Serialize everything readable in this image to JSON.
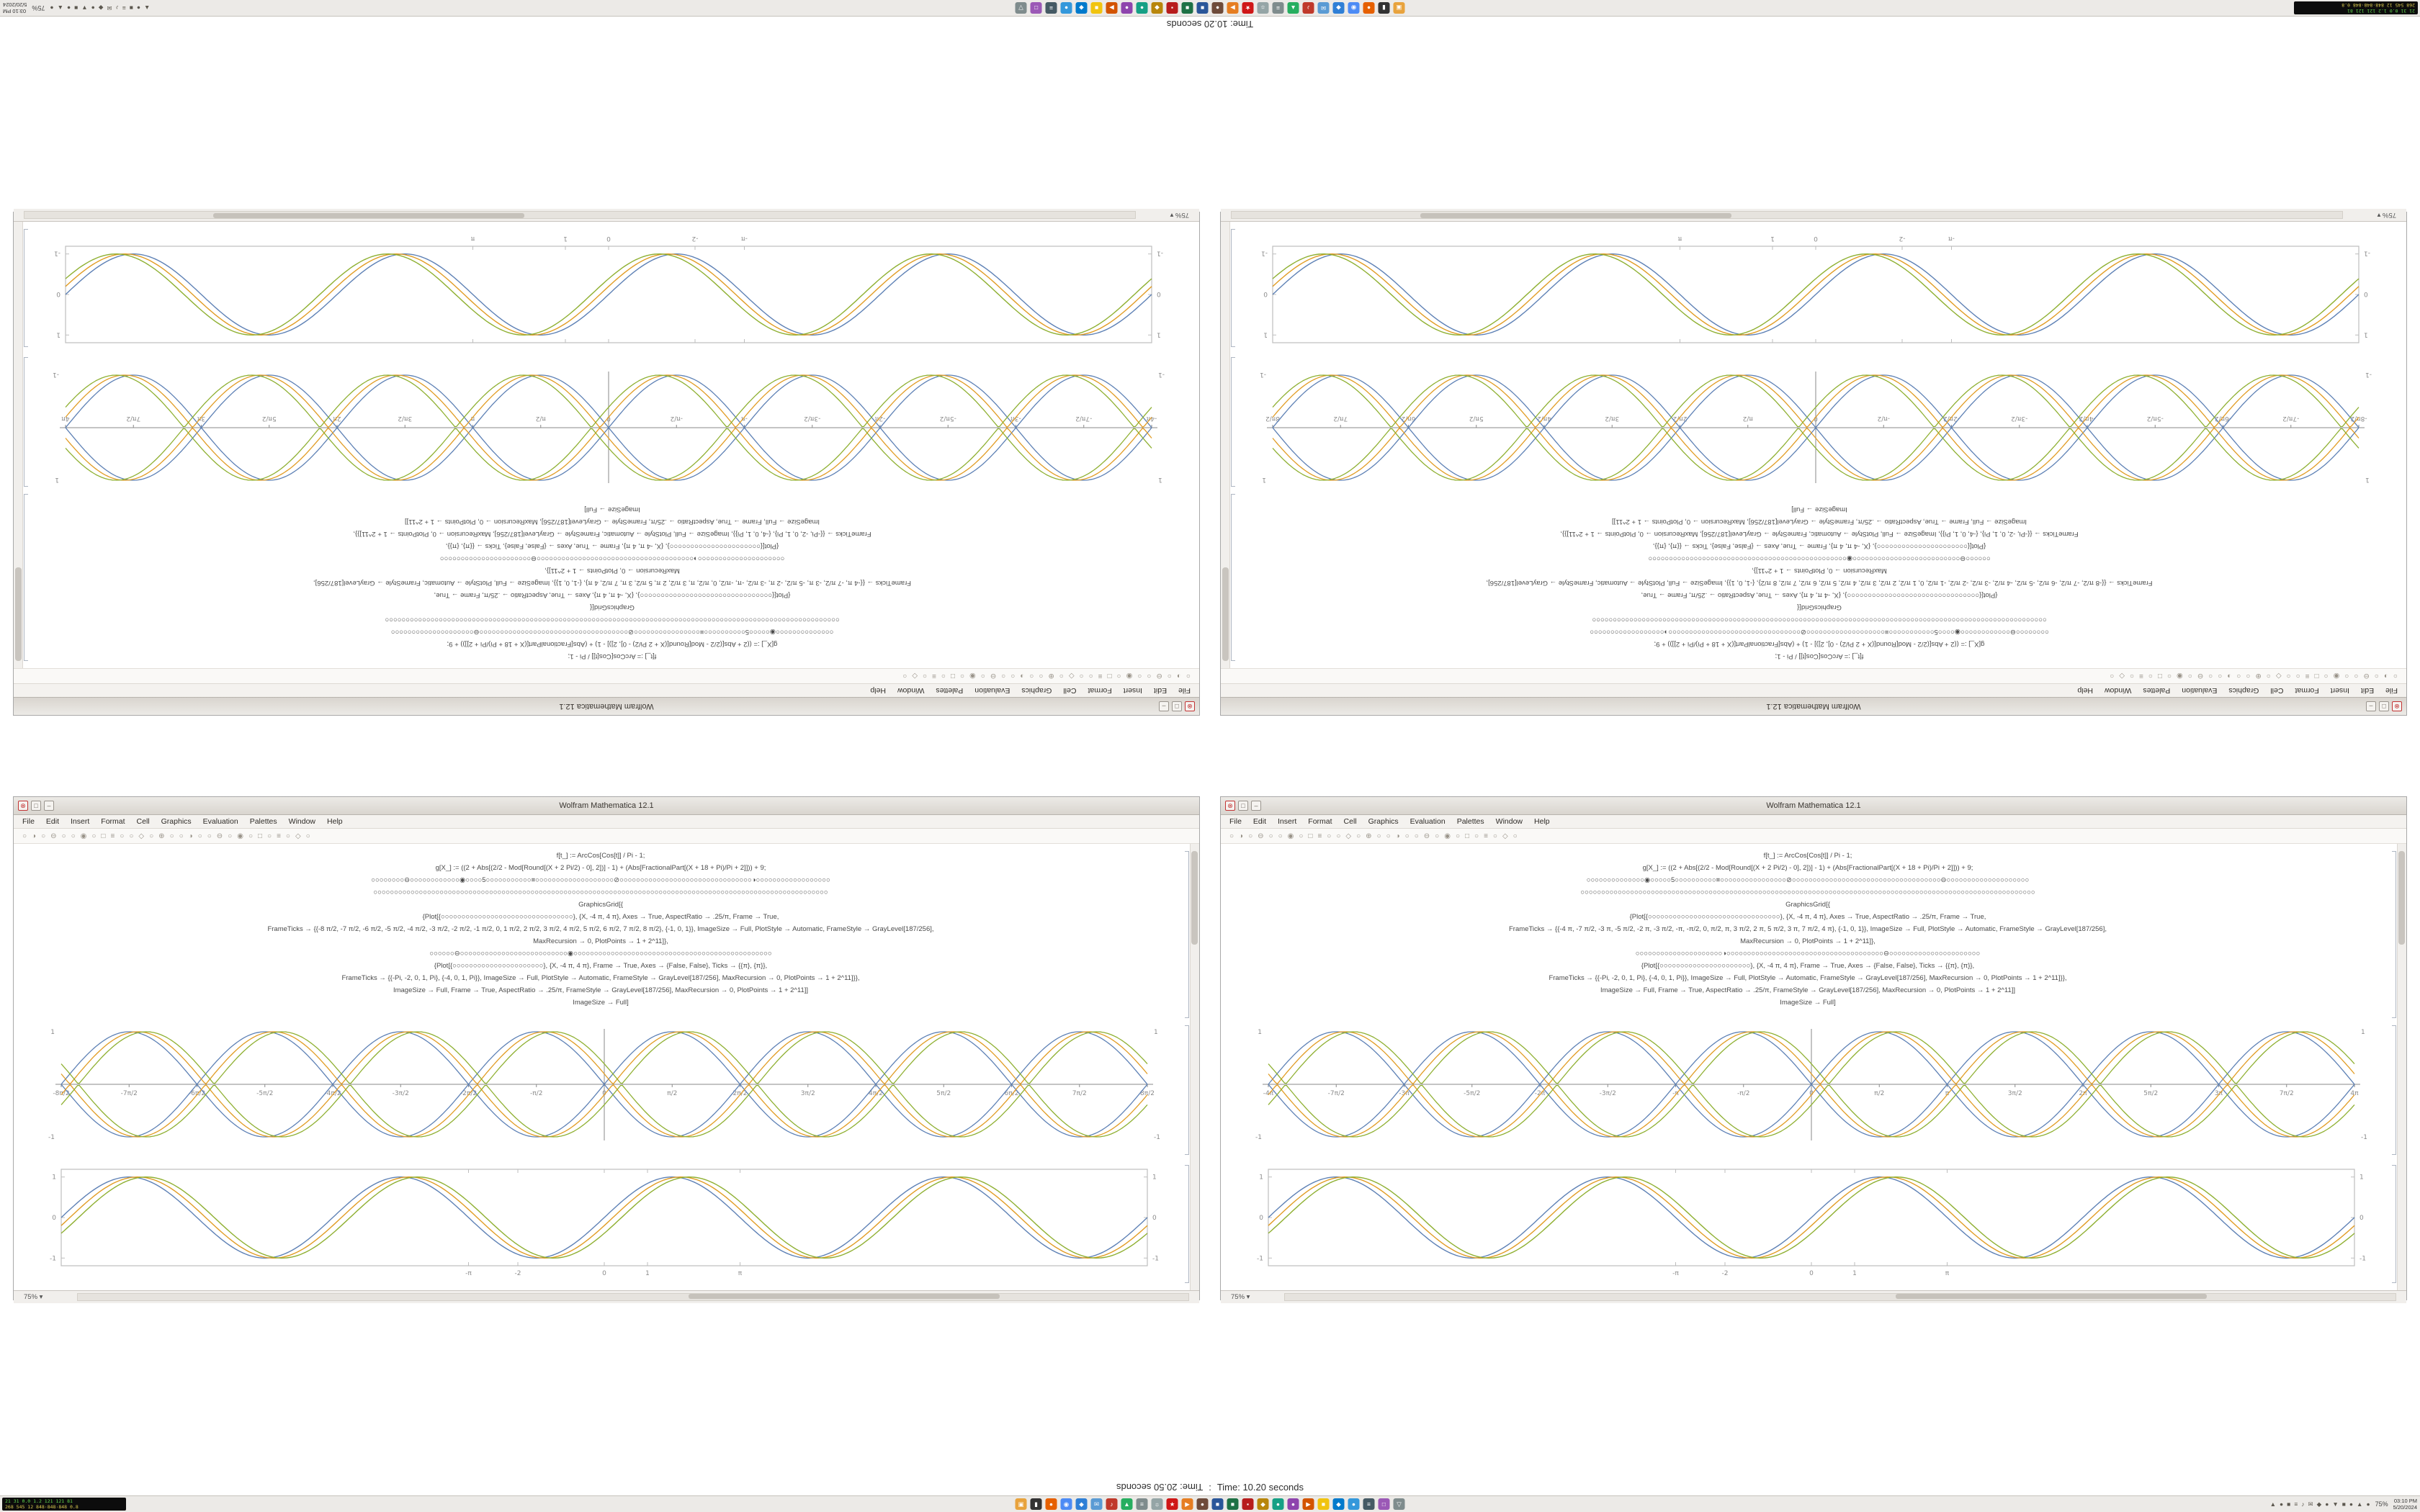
{
  "timer": {
    "main": "Time: 10.20 seconds",
    "alt": "Time: 20.50 seconds",
    "sep": ":"
  },
  "colors": {
    "curves": [
      "#5e81b5",
      "#e19c24",
      "#8fb032"
    ],
    "frame": "#bdbdbd",
    "axis": "#8a8a8a",
    "accent_red": "#c23434"
  },
  "chrome": {
    "title": "Wolfram Mathematica 12.1",
    "menu": [
      "File",
      "Edit",
      "Insert",
      "Format",
      "Cell",
      "Graphics",
      "Evaluation",
      "Palettes",
      "Window",
      "Help"
    ],
    "toolbar_icons": [
      "○",
      "◑",
      "○",
      "⊖",
      "○",
      "○",
      "◉",
      "○",
      "□",
      "≡",
      "○",
      "○",
      "◇",
      "○",
      "⊕",
      "○",
      "○",
      "◑",
      "○",
      "○",
      "⊖",
      "○",
      "◉",
      "○",
      "□",
      "○",
      "≡",
      "○",
      "◇",
      "○"
    ],
    "zoom": "75%",
    "zoom_caret": "▾",
    "buttons": {
      "close": "⊗",
      "max": "□",
      "min": "–"
    }
  },
  "windows": [
    {
      "id": "left",
      "code_lines": [
        "f[t_] := ArcCos[Cos[t]] / Pi - 1;",
        "g[X_] := ((2 + Abs[(2/2 - Mod[Round[(X + 2 Pi/2) - 0], 2])] - 1) + (Abs[FractionalPart[(X + 18 + Pi)/Pi + 2]])) + 9;",
        "○○○○○○○○⊖○○○○○○○○○○○○◉○○○○5○○○○○○○○○○○≡○○○○○○○○○○○○○○○○○○○⊘○○○○○○○○○○○○○○○○○○○○○○○○○○○○○○○○◑○○○○○○○○○○○○○○○○○○",
        "○○○○○○○○○○○○○○○○○○○○○○○○○○○○○○○○○○○○○○○○○○○○○○○○○○○○○○○○○○○○○○○○○○○○○○○○○○○○○○○○○○○○○○○○○○○○○○○○○○○○○○○○○○○○○○",
        "GraphicsGrid[{",
        "{Plot[{○○○○○○○○○○○○○○○○○○○○○○○○○○○○○○○○}, {X, -4 π, 4 π}, Axes → True, AspectRatio → .25/π, Frame → True,",
        "FrameTicks → {{-8 π/2, -7 π/2, -6 π/2, -5 π/2, -4 π/2, -3 π/2, -2 π/2, -1 π/2, 0, 1 π/2, 2 π/2, 3 π/2, 4 π/2, 5 π/2, 6 π/2, 7 π/2, 8 π/2}, {-1, 0, 1}}, ImageSize → Full, PlotStyle → Automatic, FrameStyle → GrayLevel[187/256],",
        "MaxRecursion → 0, PlotPoints → 1 + 2^11]},",
        "○○○○○○⊖○○○○○○○○○○○○○○○○○○○○○○○○○○◉○○○○○○○○○○○○○○○○○○○○○○○○○○○○○○○○○○○○○○○○○○○○○○○○",
        "{Plot[{○○○○○○○○○○○○○○○○○○○○○○}, {X, -4 π, 4 π}, Frame → True, Axes → {False, False}, Ticks → {{π}, {π}},",
        "FrameTicks → {{-Pi, -2, 0, 1, Pi}, {-4, 0, 1, Pi}}, ImageSize → Full, PlotStyle → Automatic, FrameStyle → GrayLevel[187/256], MaxRecursion → 0, PlotPoints → 1 + 2^11]}},",
        "ImageSize → Full, Frame → True, AspectRatio → .25/π, FrameStyle → GrayLevel[187/256], MaxRecursion → 0, PlotPoints → 1 + 2^11]]",
        "ImageSize → Full]"
      ],
      "abs_plot": {
        "type": "abs",
        "x_range_pi": [
          -4,
          4
        ],
        "phases": [
          0,
          0.2,
          0.4
        ],
        "x_ticks": [
          {
            "v": -4,
            "label": "-8π/2"
          },
          {
            "v": -3.5,
            "label": "-7π/2"
          },
          {
            "v": -3,
            "label": "-6π/2"
          },
          {
            "v": -2.5,
            "label": "-5π/2"
          },
          {
            "v": -2,
            "label": "-4π/2"
          },
          {
            "v": -1.5,
            "label": "-3π/2"
          },
          {
            "v": -1,
            "label": "-2π/2"
          },
          {
            "v": -0.5,
            "label": "-π/2"
          },
          {
            "v": 0,
            "label": "0"
          },
          {
            "v": 0.5,
            "label": "π/2"
          },
          {
            "v": 1,
            "label": "2π/2"
          },
          {
            "v": 1.5,
            "label": "3π/2"
          },
          {
            "v": 2,
            "label": "4π/2"
          },
          {
            "v": 2.5,
            "label": "5π/2"
          },
          {
            "v": 3,
            "label": "6π/2"
          },
          {
            "v": 3.5,
            "label": "7π/2"
          },
          {
            "v": 4,
            "label": "8π/2"
          }
        ],
        "y_ticks": [
          {
            "v": -1,
            "label": "-1"
          },
          {
            "v": 0,
            "label": "0"
          },
          {
            "v": 1,
            "label": "1"
          }
        ]
      },
      "framed_plot": {
        "type": "framed",
        "x_range_pi": [
          -4,
          4
        ],
        "phases": [
          0,
          0.2,
          0.4
        ],
        "x_ticks": [
          {
            "v": -1,
            "label": "-π"
          },
          {
            "v": -0.6366,
            "label": "-2"
          },
          {
            "v": 0,
            "label": "0"
          },
          {
            "v": 0.3183,
            "label": "1"
          },
          {
            "v": 1,
            "label": "π"
          }
        ],
        "y_ticks": [
          {
            "v": -1,
            "label": "-1"
          },
          {
            "v": 0,
            "label": "0"
          },
          {
            "v": 1,
            "label": "1"
          }
        ]
      }
    },
    {
      "id": "right",
      "code_lines": [
        "f[t_] := ArcCos[Cos[t]] / Pi - 1;",
        "g[X_] := ((2 + Abs[(2/2 - Mod[Round[(X + 2 Pi/2) - 0], 2])] - 1) + (Abs[FractionalPart[(X + 18 + Pi)/Pi + 2]])) + 9;",
        "○○○○○○○○○○○○○○◉○○○○○5○○○○○○○○○○≡○○○○○○○○○○○○○○○○⊘○○○○○○○○○○○○○○○○○○○○○○○○○○○○○○○○○○○○⊖○○○○○○○○○○○○○○○○○○○○",
        "○○○○○○○○○○○○○○○○○○○○○○○○○○○○○○○○○○○○○○○○○○○○○○○○○○○○○○○○○○○○○○○○○○○○○○○○○○○○○○○○○○○○○○○○○○○○○○○○○○○○○○○○○○○○○○",
        "GraphicsGrid[{",
        "{Plot[{○○○○○○○○○○○○○○○○○○○○○○○○○○○○○○○○}, {X, -4 π, 4 π}, Axes → True, AspectRatio → .25/π, Frame → True,",
        "FrameTicks → {{-4 π, -7 π/2, -3 π, -5 π/2, -2 π, -3 π/2, -π, -π/2, 0, π/2, π, 3 π/2, 2 π, 5 π/2, 3 π, 7 π/2, 4 π}, {-1, 0, 1}}, ImageSize → Full, PlotStyle → Automatic, FrameStyle → GrayLevel[187/256],",
        "MaxRecursion → 0, PlotPoints → 1 + 2^11]},",
        "○○○○○○○○○○○○○○○○○○○○○◑○○○○○○○○○○○○○○○○○○○○○○○○○○○○○○○○○○○○○○⊖○○○○○○○○○○○○○○○○○○○○○○",
        "{Plot[{○○○○○○○○○○○○○○○○○○○○○○}, {X, -4 π, 4 π}, Frame → True, Axes → {False, False}, Ticks → {{π}, {π}},",
        "FrameTicks → {{-Pi, -2, 0, 1, Pi}, {-4, 0, 1, Pi}}, ImageSize → Full, PlotStyle → Automatic, FrameStyle → GrayLevel[187/256], MaxRecursion → 0, PlotPoints → 1 + 2^11]}},",
        "ImageSize → Full, Frame → True, AspectRatio → .25/π, FrameStyle → GrayLevel[187/256], MaxRecursion → 0, PlotPoints → 1 + 2^11]]",
        "ImageSize → Full]"
      ],
      "abs_plot": {
        "type": "abs",
        "x_range_pi": [
          -4,
          4
        ],
        "phases": [
          0,
          0.2,
          0.4
        ],
        "x_ticks": [
          {
            "v": -4,
            "label": "-4π"
          },
          {
            "v": -3.5,
            "label": "-7π/2"
          },
          {
            "v": -3,
            "label": "-3π"
          },
          {
            "v": -2.5,
            "label": "-5π/2"
          },
          {
            "v": -2,
            "label": "-2π"
          },
          {
            "v": -1.5,
            "label": "-3π/2"
          },
          {
            "v": -1,
            "label": "-π"
          },
          {
            "v": -0.5,
            "label": "-π/2"
          },
          {
            "v": 0,
            "label": "0"
          },
          {
            "v": 0.5,
            "label": "π/2"
          },
          {
            "v": 1,
            "label": "π"
          },
          {
            "v": 1.5,
            "label": "3π/2"
          },
          {
            "v": 2,
            "label": "2π"
          },
          {
            "v": 2.5,
            "label": "5π/2"
          },
          {
            "v": 3,
            "label": "3π"
          },
          {
            "v": 3.5,
            "label": "7π/2"
          },
          {
            "v": 4,
            "label": "4π"
          }
        ],
        "y_ticks": [
          {
            "v": -1,
            "label": "-1"
          },
          {
            "v": 0,
            "label": "0"
          },
          {
            "v": 1,
            "label": "1"
          }
        ]
      },
      "framed_plot": {
        "type": "framed",
        "x_range_pi": [
          -4,
          4
        ],
        "phases": [
          0,
          0.2,
          0.4
        ],
        "x_ticks": [
          {
            "v": -1,
            "label": "-π"
          },
          {
            "v": -0.6366,
            "label": "-2"
          },
          {
            "v": 0,
            "label": "0"
          },
          {
            "v": 0.3183,
            "label": "1"
          },
          {
            "v": 1,
            "label": "π"
          }
        ],
        "y_ticks": [
          {
            "v": -1,
            "label": "-1"
          },
          {
            "v": 0,
            "label": "0"
          },
          {
            "v": 1,
            "label": "1"
          }
        ]
      }
    }
  ],
  "taskbar": {
    "monitor_line1": "21 31 0.0 1.2 121 121 81",
    "monitor_line2": "268 545 12 848·848·848 0.8",
    "tray_zoom": "75%",
    "clock_time": "03:10 PM",
    "clock_date": "5/20/2024",
    "tray_icons": [
      "▲",
      "●",
      "■",
      "≡",
      "♪",
      "✉",
      "◆",
      "●",
      "▼",
      "■",
      "●",
      "▲",
      "●"
    ],
    "app_icons": [
      {
        "name": "file-manager",
        "color": "#e8a33d",
        "glyph": "▣"
      },
      {
        "name": "terminal",
        "color": "#333333",
        "glyph": "▮"
      },
      {
        "name": "firefox",
        "color": "#e66000",
        "glyph": "●"
      },
      {
        "name": "chrome",
        "color": "#4c8bf5",
        "glyph": "◉"
      },
      {
        "name": "code-editor",
        "color": "#2f7fd6",
        "glyph": "◆"
      },
      {
        "name": "mail",
        "color": "#5a9bd4",
        "glyph": "✉"
      },
      {
        "name": "music-player",
        "color": "#c0392b",
        "glyph": "♪"
      },
      {
        "name": "image-viewer",
        "color": "#27ae60",
        "glyph": "▲"
      },
      {
        "name": "calculator",
        "color": "#7f8c8d",
        "glyph": "≡"
      },
      {
        "name": "settings",
        "color": "#95a5a6",
        "glyph": "☼"
      },
      {
        "name": "mathematica",
        "color": "#cf1717",
        "glyph": "★"
      },
      {
        "name": "media-player",
        "color": "#e67e22",
        "glyph": "▶"
      },
      {
        "name": "gimp",
        "color": "#6e4b3a",
        "glyph": "●"
      },
      {
        "name": "writer",
        "color": "#2a5699",
        "glyph": "■"
      },
      {
        "name": "spreadsheet",
        "color": "#1e7145",
        "glyph": "■"
      },
      {
        "name": "pdf-reader",
        "color": "#b71c1c",
        "glyph": "▪"
      },
      {
        "name": "archive-manager",
        "color": "#b8860b",
        "glyph": "◆"
      },
      {
        "name": "web-browser",
        "color": "#16a085",
        "glyph": "●"
      },
      {
        "name": "chat",
        "color": "#8e44ad",
        "glyph": "●"
      },
      {
        "name": "video-player",
        "color": "#d35400",
        "glyph": "▶"
      },
      {
        "name": "notes",
        "color": "#f1c40f",
        "glyph": "■"
      },
      {
        "name": "ide",
        "color": "#007acc",
        "glyph": "◆"
      },
      {
        "name": "cloud-sync",
        "color": "#3498db",
        "glyph": "●"
      },
      {
        "name": "system-monitor",
        "color": "#455a64",
        "glyph": "≡"
      },
      {
        "name": "screenshot-tool",
        "color": "#9b59b6",
        "glyph": "□"
      },
      {
        "name": "trash",
        "color": "#7f8c8d",
        "glyph": "▽"
      }
    ]
  }
}
